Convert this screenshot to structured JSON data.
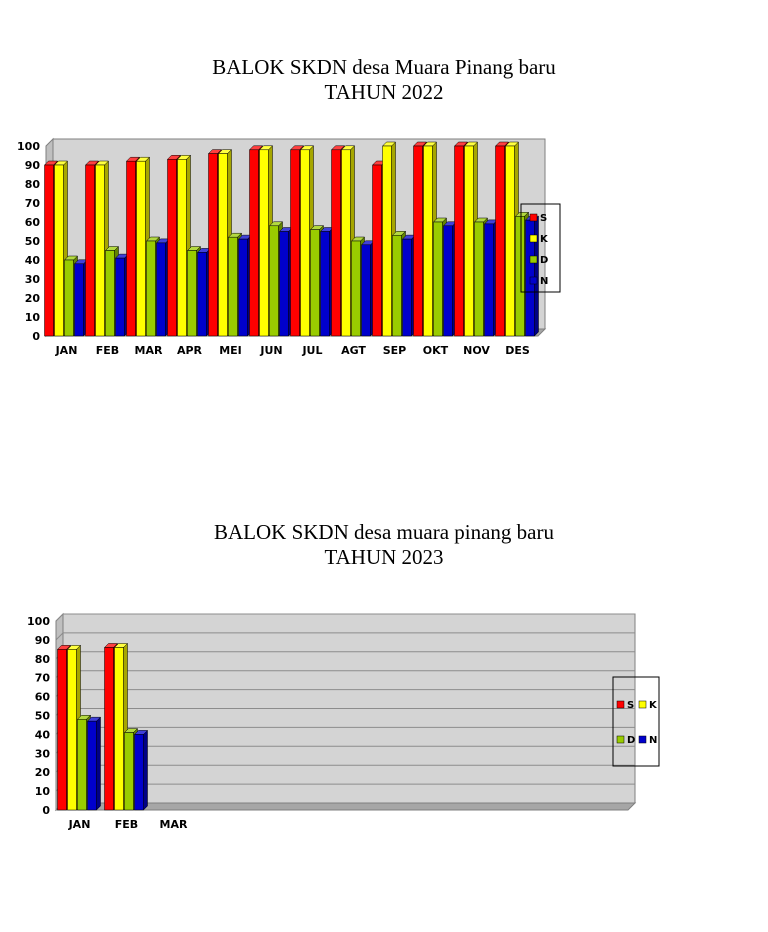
{
  "charts_meta": [
    {
      "title_line1": "BALOK SKDN desa Muara Pinang baru",
      "title_line2": "TAHUN 2022"
    },
    {
      "title_line1": "BALOK SKDN desa muara pinang baru",
      "title_line2": "TAHUN 2023"
    }
  ],
  "colors": {
    "S": "#ff0000",
    "K": "#ffff00",
    "D": "#99cc00",
    "N": "#0000cc",
    "plot_bg": "#d4d4d4",
    "floor": "#a6a6a6"
  },
  "chart_data": [
    {
      "type": "bar",
      "title": "BALOK SKDN desa Muara Pinang baru TAHUN 2022",
      "categories": [
        "JAN",
        "FEB",
        "MAR",
        "APR",
        "MEI",
        "JUN",
        "JUL",
        "AGT",
        "SEP",
        "OKT",
        "NOV",
        "DES"
      ],
      "series": [
        {
          "name": "S",
          "values": [
            90,
            90,
            92,
            93,
            96,
            98,
            98,
            98,
            90,
            100,
            100,
            100
          ]
        },
        {
          "name": "K",
          "values": [
            90,
            90,
            92,
            93,
            96,
            98,
            98,
            98,
            100,
            100,
            100,
            100
          ]
        },
        {
          "name": "D",
          "values": [
            40,
            45,
            50,
            45,
            52,
            58,
            56,
            50,
            53,
            60,
            60,
            63
          ]
        },
        {
          "name": "N",
          "values": [
            38,
            41,
            49,
            44,
            51,
            55,
            55,
            48,
            51,
            58,
            59,
            61
          ]
        }
      ],
      "ylim": [
        0,
        100
      ],
      "yticks": [
        "0",
        "10",
        "20",
        "30",
        "40",
        "50",
        "60",
        "70",
        "80",
        "90",
        "100"
      ],
      "grid": false,
      "legend": "right",
      "legend_layout": "column"
    },
    {
      "type": "bar",
      "title": "BALOK SKDN desa muara pinang baru TAHUN 2023",
      "categories": [
        "JAN",
        "FEB",
        "MAR"
      ],
      "series": [
        {
          "name": "S",
          "values": [
            85,
            86,
            null
          ]
        },
        {
          "name": "K",
          "values": [
            85,
            86,
            null
          ]
        },
        {
          "name": "D",
          "values": [
            48,
            41,
            null
          ]
        },
        {
          "name": "N",
          "values": [
            47,
            40,
            null
          ]
        }
      ],
      "ylim": [
        0,
        100
      ],
      "yticks": [
        "0",
        "10",
        "20",
        "30",
        "40",
        "50",
        "60",
        "70",
        "80",
        "90",
        "100"
      ],
      "grid": true,
      "legend": "right",
      "legend_layout": "grid"
    }
  ]
}
